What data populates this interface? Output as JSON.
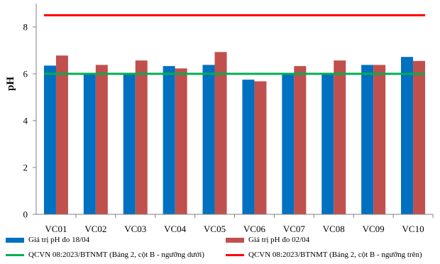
{
  "chart_data": {
    "type": "bar",
    "categories": [
      "VC01",
      "VC02",
      "VC03",
      "VC04",
      "VC05",
      "VC06",
      "VC07",
      "VC08",
      "VC09",
      "VC10"
    ],
    "series": [
      {
        "name": "Giá trị pH đo 18/04",
        "color": "#0070c0",
        "values": [
          6.35,
          6.0,
          6.0,
          6.33,
          6.38,
          5.75,
          6.0,
          6.0,
          6.38,
          6.72
        ]
      },
      {
        "name": "Giá trị pH đo 02/04",
        "color": "#c0504d",
        "values": [
          6.78,
          6.38,
          6.57,
          6.23,
          6.93,
          5.68,
          6.33,
          6.57,
          6.38,
          6.55
        ]
      }
    ],
    "reference_lines": [
      {
        "name": "QCVN 08:2023/BTNMT (Bảng 2, cột B - ngưỡng dưới)",
        "color": "#00b050",
        "value": 6.0
      },
      {
        "name": "QCVN 08:2023/BTNMT (Bảng 2, cột B - ngưỡng trên)",
        "color": "#ff0000",
        "value": 8.5
      }
    ],
    "ylabel": "pH",
    "ylim": [
      0,
      9
    ],
    "yticks": [
      0,
      2,
      4,
      6,
      8
    ],
    "grid": false,
    "legend_position": "bottom"
  }
}
